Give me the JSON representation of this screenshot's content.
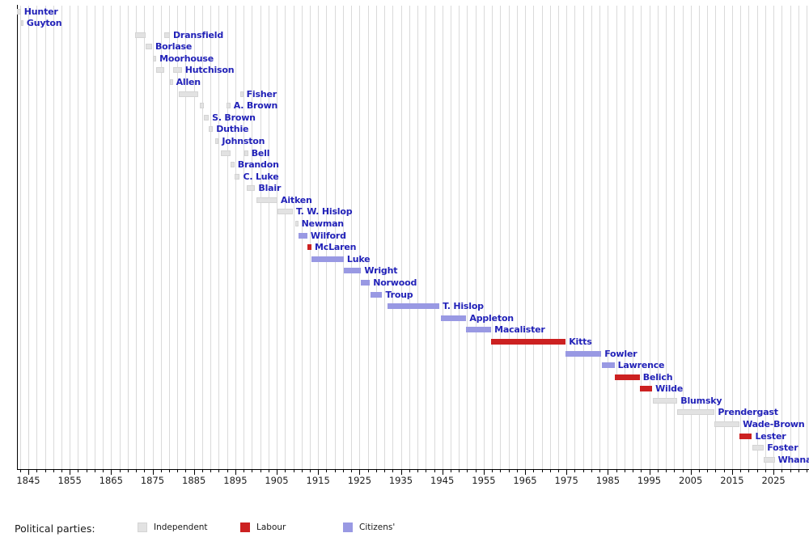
{
  "chart_data": {
    "type": "timeline",
    "title": "",
    "description": "Gantt-style timeline of mayoral terms, one row per mayor, bars coloured by political party",
    "x_axis": {
      "tick_labels": [
        1845,
        1855,
        1865,
        1875,
        1885,
        1895,
        1905,
        1915,
        1925,
        1935,
        1945,
        1955,
        1965,
        1975,
        1985,
        1995,
        2005,
        2015,
        2025
      ],
      "minor_tick_step_years": 2,
      "gridline_step_years": 2,
      "range": [
        1841.3,
        2033.6
      ],
      "grid": true
    },
    "legend": {
      "title": "Political parties:",
      "position": "bottom",
      "entries": [
        {
          "key": "independent",
          "label": "Independent",
          "color": "#e2e2e2"
        },
        {
          "key": "labour",
          "label": "Labour",
          "color": "#cc2121"
        },
        {
          "key": "citizens",
          "label": "Citizens'",
          "color": "#9999e3"
        }
      ]
    },
    "rows": [
      {
        "name": "Hunter",
        "party": "independent",
        "terms": [
          [
            1842.3,
            1843.2
          ]
        ]
      },
      {
        "name": "Guyton",
        "party": "independent",
        "terms": [
          [
            1843.2,
            1843.8
          ]
        ]
      },
      {
        "name": "Dransfield",
        "party": "independent",
        "terms": [
          [
            1870.7,
            1873.4
          ],
          [
            1877.9,
            1879.2
          ]
        ]
      },
      {
        "name": "Borlase",
        "party": "independent",
        "terms": [
          [
            1873.4,
            1874.9
          ]
        ]
      },
      {
        "name": "Moorhouse",
        "party": "independent",
        "terms": [
          [
            1875.0,
            1875.9
          ]
        ]
      },
      {
        "name": "Hutchison",
        "party": "independent",
        "terms": [
          [
            1875.9,
            1877.9
          ],
          [
            1879.9,
            1882.1
          ]
        ]
      },
      {
        "name": "Allen",
        "party": "independent",
        "terms": [
          [
            1879.1,
            1879.9
          ]
        ]
      },
      {
        "name": "Fisher",
        "party": "independent",
        "terms": [
          [
            1881.4,
            1886.0
          ],
          [
            1896.1,
            1896.9
          ]
        ]
      },
      {
        "name": "A. Brown",
        "party": "independent",
        "terms": [
          [
            1886.4,
            1887.4
          ],
          [
            1892.9,
            1893.8
          ]
        ]
      },
      {
        "name": "S. Brown",
        "party": "independent",
        "terms": [
          [
            1887.4,
            1888.6
          ]
        ]
      },
      {
        "name": "Duthie",
        "party": "independent",
        "terms": [
          [
            1888.6,
            1889.6
          ]
        ]
      },
      {
        "name": "Johnston",
        "party": "independent",
        "terms": [
          [
            1890.1,
            1891.0
          ]
        ]
      },
      {
        "name": "Bell",
        "party": "independent",
        "terms": [
          [
            1891.5,
            1893.8
          ],
          [
            1897.2,
            1898.1
          ]
        ]
      },
      {
        "name": "Brandon",
        "party": "independent",
        "terms": [
          [
            1893.8,
            1894.8
          ]
        ]
      },
      {
        "name": "C. Luke",
        "party": "independent",
        "terms": [
          [
            1894.8,
            1896.1
          ]
        ]
      },
      {
        "name": "Blair",
        "party": "independent",
        "terms": [
          [
            1897.7,
            1899.8
          ]
        ]
      },
      {
        "name": "Aitken",
        "party": "independent",
        "terms": [
          [
            1900.1,
            1905.2
          ]
        ]
      },
      {
        "name": "T. W. Hislop",
        "party": "independent",
        "terms": [
          [
            1905.2,
            1908.9
          ]
        ]
      },
      {
        "name": "Newman",
        "party": "independent",
        "terms": [
          [
            1909.5,
            1910.2
          ]
        ]
      },
      {
        "name": "Wilford",
        "party": "citizens",
        "terms": [
          [
            1910.2,
            1912.4
          ]
        ]
      },
      {
        "name": "McLaren",
        "party": "labour",
        "terms": [
          [
            1912.4,
            1913.4
          ]
        ]
      },
      {
        "name": "Luke",
        "party": "citizens",
        "terms": [
          [
            1913.4,
            1921.2
          ]
        ]
      },
      {
        "name": "Wright",
        "party": "citizens",
        "terms": [
          [
            1921.2,
            1925.4
          ]
        ]
      },
      {
        "name": "Norwood",
        "party": "citizens",
        "terms": [
          [
            1925.4,
            1927.5
          ]
        ]
      },
      {
        "name": "Troup",
        "party": "citizens",
        "terms": [
          [
            1927.7,
            1930.5
          ]
        ]
      },
      {
        "name": "T. Hislop",
        "party": "citizens",
        "terms": [
          [
            1931.7,
            1944.3
          ]
        ]
      },
      {
        "name": "Appleton",
        "party": "citizens",
        "terms": [
          [
            1944.7,
            1950.8
          ]
        ]
      },
      {
        "name": "Macalister",
        "party": "citizens",
        "terms": [
          [
            1950.8,
            1956.8
          ]
        ]
      },
      {
        "name": "Kitts",
        "party": "labour",
        "terms": [
          [
            1956.8,
            1974.8
          ]
        ]
      },
      {
        "name": "Fowler",
        "party": "citizens",
        "terms": [
          [
            1974.8,
            1983.4
          ]
        ]
      },
      {
        "name": "Lawrence",
        "party": "citizens",
        "terms": [
          [
            1983.6,
            1986.6
          ]
        ]
      },
      {
        "name": "Belich",
        "party": "labour",
        "terms": [
          [
            1986.6,
            1992.7
          ]
        ]
      },
      {
        "name": "Wilde",
        "party": "labour",
        "terms": [
          [
            1992.7,
            1995.7
          ]
        ]
      },
      {
        "name": "Blumsky",
        "party": "independent",
        "terms": [
          [
            1995.9,
            2001.8
          ]
        ]
      },
      {
        "name": "Prendergast",
        "party": "independent",
        "terms": [
          [
            2001.8,
            2010.8
          ]
        ]
      },
      {
        "name": "Wade-Brown",
        "party": "independent",
        "terms": [
          [
            2010.8,
            2016.8
          ]
        ]
      },
      {
        "name": "Lester",
        "party": "labour",
        "terms": [
          [
            2016.8,
            2019.8
          ]
        ]
      },
      {
        "name": "Foster",
        "party": "independent",
        "terms": [
          [
            2019.8,
            2022.7
          ]
        ]
      },
      {
        "name": "Whanau",
        "party": "independent",
        "terms": [
          [
            2022.7,
            2025.3
          ]
        ]
      }
    ]
  }
}
